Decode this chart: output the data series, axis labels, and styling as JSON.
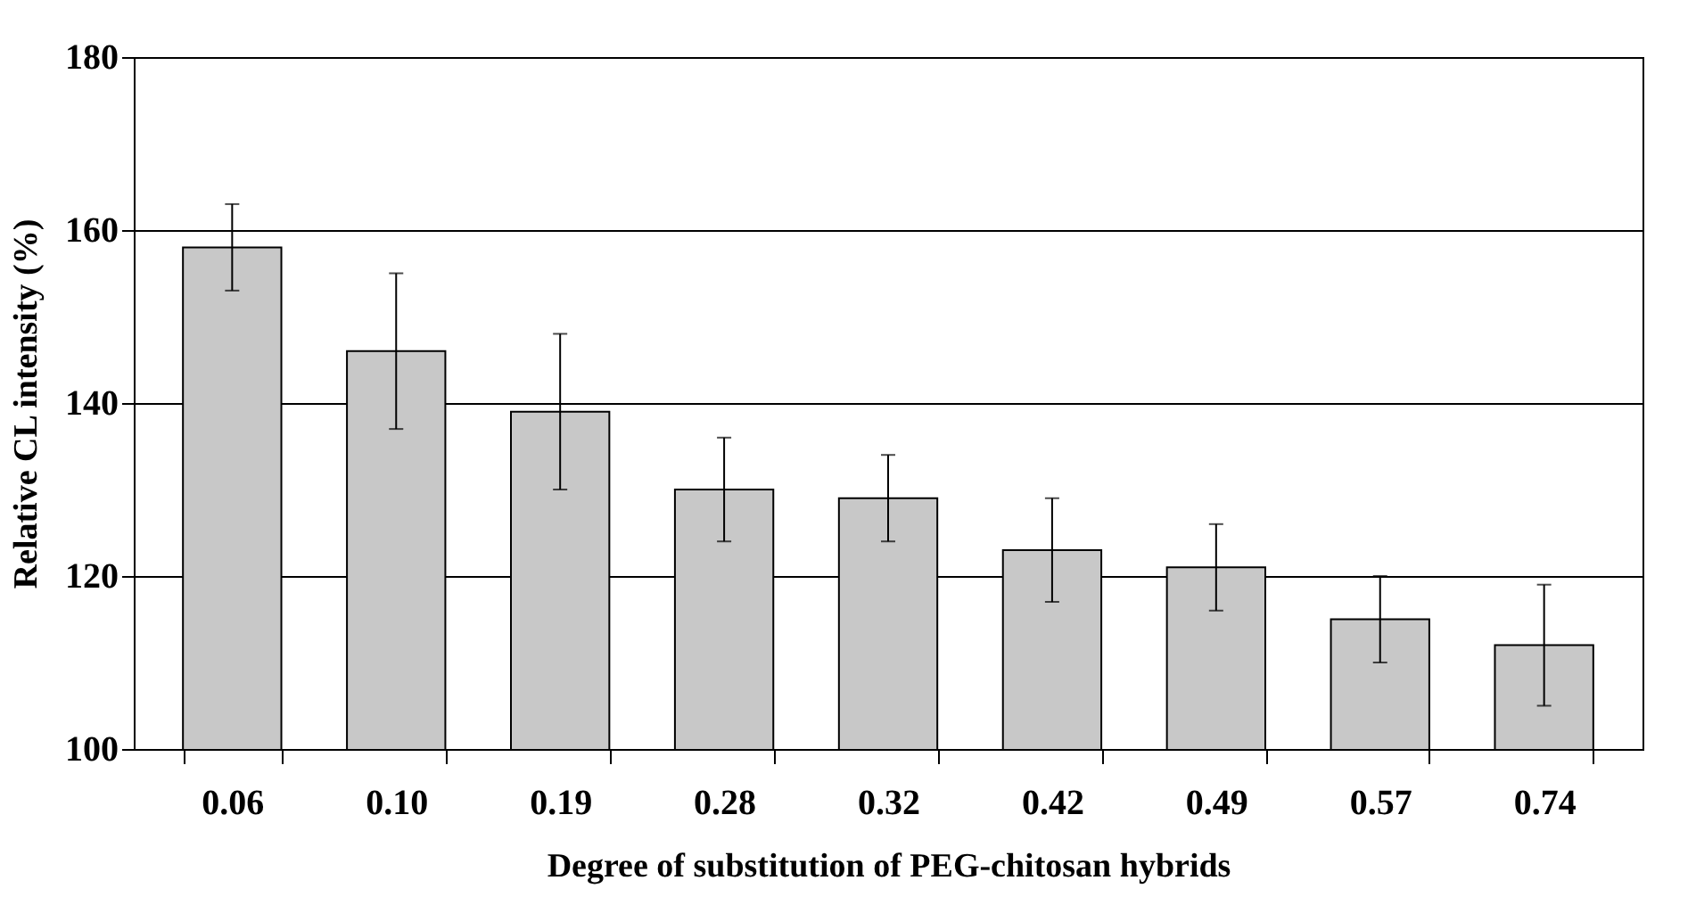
{
  "chart_data": {
    "type": "bar",
    "xlabel": "Degree of substitution of PEG-chitosan hybrids",
    "ylabel": "Relative CL intensity (%)",
    "categories": [
      "0.06",
      "0.10",
      "0.19",
      "0.28",
      "0.32",
      "0.42",
      "0.49",
      "0.57",
      "0.74"
    ],
    "values": [
      158,
      146,
      139,
      130,
      129,
      123,
      121,
      115,
      112
    ],
    "errors": [
      [
        153,
        163
      ],
      [
        137,
        155
      ],
      [
        130,
        148
      ],
      [
        124,
        136
      ],
      [
        124,
        134
      ],
      [
        117,
        129
      ],
      [
        116,
        126
      ],
      [
        110,
        120
      ],
      [
        105,
        119
      ]
    ],
    "color": "#c8c8c8",
    "ylim": [
      100,
      180
    ],
    "yticks": [
      100,
      120,
      140,
      160,
      180
    ],
    "grid": "y"
  }
}
